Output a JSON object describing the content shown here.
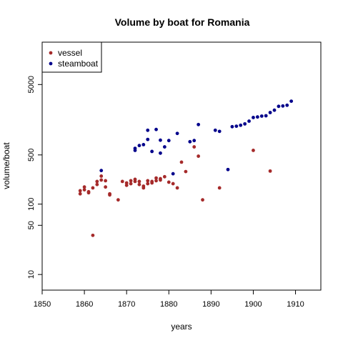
{
  "chart_data": {
    "type": "scatter",
    "title": "Volume by boat for Romania",
    "xlabel": "years",
    "ylabel": "volume/boat",
    "xlim": [
      1850,
      1916
    ],
    "ylim": [
      6,
      20000
    ],
    "ylog": true,
    "xticks": [
      1850,
      1860,
      1870,
      1880,
      1890,
      1900,
      1910
    ],
    "yticks": [
      10,
      50,
      100,
      500,
      5000
    ],
    "grid": false,
    "legend": {
      "position": "top-left"
    },
    "series": [
      {
        "name": "vessel",
        "color": "#A52A2A",
        "x": [
          1859,
          1859,
          1860,
          1860,
          1861,
          1861,
          1862,
          1862,
          1863,
          1863,
          1864,
          1864,
          1865,
          1865,
          1866,
          1866,
          1868,
          1869,
          1870,
          1870,
          1871,
          1871,
          1872,
          1872,
          1873,
          1873,
          1874,
          1874,
          1875,
          1875,
          1876,
          1876,
          1877,
          1877,
          1878,
          1878,
          1879,
          1880,
          1881,
          1882,
          1883,
          1884,
          1886,
          1887,
          1888,
          1892,
          1900,
          1904
        ],
        "y": [
          140,
          155,
          160,
          175,
          145,
          150,
          36,
          170,
          190,
          210,
          220,
          250,
          215,
          175,
          140,
          135,
          115,
          210,
          185,
          200,
          195,
          215,
          210,
          225,
          190,
          210,
          170,
          180,
          195,
          215,
          200,
          210,
          215,
          235,
          220,
          230,
          245,
          205,
          195,
          170,
          395,
          290,
          650,
          480,
          115,
          170,
          580,
          295
        ]
      },
      {
        "name": "steamboat",
        "color": "#00008B",
        "x": [
          1864,
          1872,
          1872,
          1873,
          1874,
          1875,
          1875,
          1876,
          1877,
          1878,
          1878,
          1879,
          1880,
          1881,
          1882,
          1885,
          1886,
          1887,
          1891,
          1892,
          1894,
          1895,
          1896,
          1897,
          1898,
          1899,
          1900,
          1901,
          1902,
          1903,
          1904,
          1905,
          1906,
          1907,
          1908,
          1909
        ],
        "y": [
          300,
          580,
          620,
          680,
          700,
          830,
          1120,
          560,
          1150,
          530,
          810,
          650,
          800,
          270,
          1010,
          770,
          800,
          1350,
          1120,
          1080,
          310,
          1260,
          1280,
          1320,
          1380,
          1510,
          1700,
          1730,
          1780,
          1800,
          2000,
          2160,
          2450,
          2480,
          2540,
          2900
        ]
      }
    ],
    "background": "#ffffff",
    "axis_color": "#000000"
  }
}
